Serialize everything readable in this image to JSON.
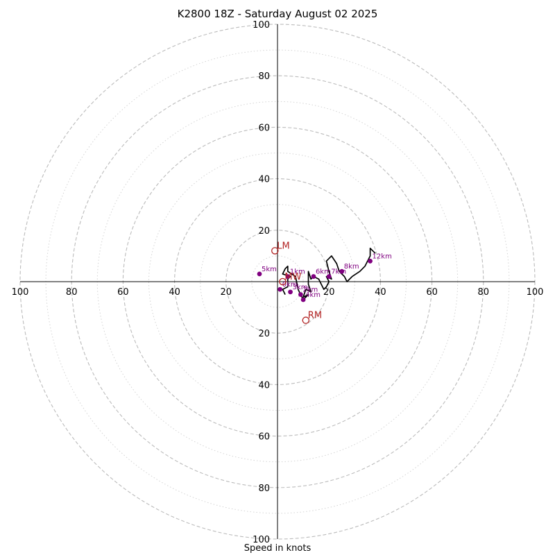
{
  "chart_data": {
    "type": "hodograph",
    "title": "K2800 18Z - Saturday August 02 2025",
    "xlabel": "Speed in knots",
    "units": "knots",
    "xlim": [
      -100,
      100
    ],
    "ylim": [
      -100,
      100
    ],
    "rings_major": [
      20,
      40,
      60,
      80,
      100
    ],
    "rings_minor": [
      10,
      30,
      50,
      70,
      90
    ],
    "tick_labels": [
      "20",
      "40",
      "60",
      "80",
      "100"
    ],
    "colors": {
      "trace": "#000000",
      "height_points": "#800080",
      "storm_motion": "#b22222",
      "ring_major": "#bbbbbb",
      "ring_minor": "#d3d3d3"
    },
    "trace": [
      [
        3,
        -5
      ],
      [
        2,
        -3
      ],
      [
        4,
        -2
      ],
      [
        4,
        1
      ],
      [
        5,
        2
      ],
      [
        2,
        3
      ],
      [
        3,
        5
      ],
      [
        4,
        6
      ],
      [
        4,
        4
      ],
      [
        7,
        2
      ],
      [
        8,
        -3
      ],
      [
        9,
        -5
      ],
      [
        10,
        -7
      ],
      [
        12,
        -5
      ],
      [
        10,
        -6
      ],
      [
        11,
        -3
      ],
      [
        13,
        -4
      ],
      [
        12,
        -1
      ],
      [
        12,
        4
      ],
      [
        13,
        1
      ],
      [
        14,
        2
      ],
      [
        16,
        1
      ],
      [
        17,
        -1
      ],
      [
        18,
        -3
      ],
      [
        19,
        -2
      ],
      [
        20,
        0
      ],
      [
        19,
        2
      ],
      [
        21,
        1
      ],
      [
        20,
        4
      ],
      [
        19,
        8
      ],
      [
        21,
        10
      ],
      [
        23,
        7
      ],
      [
        24,
        4
      ],
      [
        26,
        2
      ],
      [
        27,
        0
      ],
      [
        29,
        2
      ],
      [
        32,
        4
      ],
      [
        34,
        6
      ],
      [
        36,
        10
      ],
      [
        36,
        13
      ],
      [
        38,
        11
      ]
    ],
    "height_points": [
      {
        "label": "0km",
        "u": 1,
        "v": -3
      },
      {
        "label": "1km",
        "u": 4,
        "v": 2
      },
      {
        "label": "2km",
        "u": 9,
        "v": -5
      },
      {
        "label": "3km",
        "u": 5,
        "v": -4
      },
      {
        "label": "4km",
        "u": 10,
        "v": -7
      },
      {
        "label": "5km",
        "u": -7,
        "v": 3
      },
      {
        "label": "6km",
        "u": 14,
        "v": 2
      },
      {
        "label": "7km",
        "u": 20,
        "v": 2
      },
      {
        "label": "8km",
        "u": 25,
        "v": 4
      },
      {
        "label": "12km",
        "u": 36,
        "v": 8
      }
    ],
    "storm_motion": [
      {
        "label": "LM",
        "u": -1,
        "v": 12
      },
      {
        "label": "MW",
        "u": 2,
        "v": 0
      },
      {
        "label": "RM",
        "u": 11,
        "v": -15
      }
    ]
  }
}
